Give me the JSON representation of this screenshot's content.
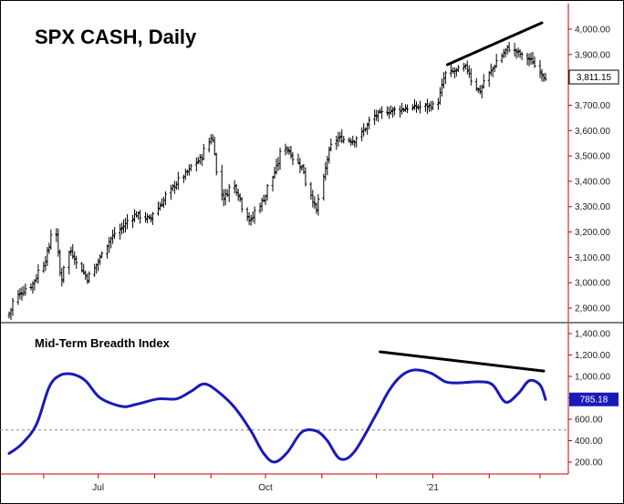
{
  "chart_data": [
    {
      "type": "bar",
      "style": "ohlc-bars",
      "title": "SPX CASH, Daily",
      "bar_color": "#000000",
      "y_ticks": [
        "4,000.00",
        "3,900.00",
        "3,800.00",
        "3,700.00",
        "3,600.00",
        "3,500.00",
        "3,400.00",
        "3,300.00",
        "3,200.00",
        "3,100.00",
        "3,000.00",
        "2,900.00"
      ],
      "ylim": [
        2870,
        4040
      ],
      "last_value_label": "3,811.15",
      "last_value_badge_color": "#ffffff",
      "x_range": [
        "2020-05-13",
        "2021-03-04"
      ],
      "anchors": [
        [
          "2020-05-13",
          2870
        ],
        [
          "2020-05-18",
          2950
        ],
        [
          "2020-05-26",
          2990
        ],
        [
          "2020-06-02",
          3080
        ],
        [
          "2020-06-08",
          3230
        ],
        [
          "2020-06-11",
          3000
        ],
        [
          "2020-06-16",
          3130
        ],
        [
          "2020-06-26",
          3010
        ],
        [
          "2020-07-08",
          3170
        ],
        [
          "2020-07-22",
          3270
        ],
        [
          "2020-07-30",
          3250
        ],
        [
          "2020-08-12",
          3380
        ],
        [
          "2020-08-28",
          3500
        ],
        [
          "2020-09-02",
          3580
        ],
        [
          "2020-09-08",
          3330
        ],
        [
          "2020-09-14",
          3390
        ],
        [
          "2020-09-23",
          3240
        ],
        [
          "2020-10-02",
          3350
        ],
        [
          "2020-10-12",
          3540
        ],
        [
          "2020-10-22",
          3450
        ],
        [
          "2020-10-30",
          3270
        ],
        [
          "2020-11-05",
          3510
        ],
        [
          "2020-11-10",
          3570
        ],
        [
          "2020-11-20",
          3560
        ],
        [
          "2020-12-01",
          3660
        ],
        [
          "2020-12-10",
          3680
        ],
        [
          "2020-12-21",
          3690
        ],
        [
          "2021-01-04",
          3700
        ],
        [
          "2021-01-08",
          3820
        ],
        [
          "2021-01-20",
          3850
        ],
        [
          "2021-01-27",
          3750
        ],
        [
          "2021-02-02",
          3830
        ],
        [
          "2021-02-12",
          3930
        ],
        [
          "2021-02-19",
          3900
        ],
        [
          "2021-02-26",
          3870
        ],
        [
          "2021-03-04",
          3811
        ]
      ],
      "annotations": [
        {
          "type": "trendline",
          "from": [
            "2021-01-09",
            3860
          ],
          "to": [
            "2021-03-02",
            4025
          ]
        }
      ]
    },
    {
      "type": "line",
      "title": "Mid-Term Breadth Index",
      "line_color": "#1a1ab8",
      "y_ticks": [
        "1,400.00",
        "1,200.00",
        "1,000.00",
        "800.00",
        "600.00",
        "400.00",
        "200.00"
      ],
      "ylim": [
        90,
        1460
      ],
      "reference_line": 500,
      "last_value_label": "785.18",
      "last_value_badge_color": "#1a1ab8",
      "x_range": [
        "2020-05-13",
        "2021-03-04"
      ],
      "points": [
        [
          "2020-05-13",
          280
        ],
        [
          "2020-05-20",
          370
        ],
        [
          "2020-05-28",
          550
        ],
        [
          "2020-06-04",
          900
        ],
        [
          "2020-06-10",
          1010
        ],
        [
          "2020-06-17",
          1020
        ],
        [
          "2020-06-24",
          960
        ],
        [
          "2020-07-02",
          800
        ],
        [
          "2020-07-14",
          720
        ],
        [
          "2020-07-22",
          740
        ],
        [
          "2020-08-03",
          790
        ],
        [
          "2020-08-13",
          790
        ],
        [
          "2020-08-21",
          860
        ],
        [
          "2020-08-28",
          930
        ],
        [
          "2020-09-04",
          870
        ],
        [
          "2020-09-14",
          710
        ],
        [
          "2020-09-23",
          490
        ],
        [
          "2020-09-30",
          280
        ],
        [
          "2020-10-06",
          200
        ],
        [
          "2020-10-13",
          290
        ],
        [
          "2020-10-21",
          480
        ],
        [
          "2020-10-29",
          490
        ],
        [
          "2020-11-04",
          400
        ],
        [
          "2020-11-11",
          230
        ],
        [
          "2020-11-19",
          300
        ],
        [
          "2020-12-01",
          650
        ],
        [
          "2020-12-08",
          870
        ],
        [
          "2020-12-15",
          1010
        ],
        [
          "2020-12-22",
          1060
        ],
        [
          "2020-12-31",
          1030
        ],
        [
          "2021-01-08",
          950
        ],
        [
          "2021-01-15",
          940
        ],
        [
          "2021-01-27",
          950
        ],
        [
          "2021-02-03",
          920
        ],
        [
          "2021-02-10",
          760
        ],
        [
          "2021-02-17",
          840
        ],
        [
          "2021-02-23",
          960
        ],
        [
          "2021-03-01",
          920
        ],
        [
          "2021-03-04",
          785
        ]
      ],
      "annotations": [
        {
          "type": "trendline",
          "from": [
            "2020-12-03",
            1230
          ],
          "to": [
            "2021-03-03",
            1050
          ]
        }
      ]
    }
  ],
  "x_axis": {
    "labels": [
      {
        "text": "Jul",
        "date": "2020-07-01"
      },
      {
        "text": "Oct",
        "date": "2020-10-01"
      },
      {
        "text": "'21",
        "date": "2021-01-01"
      }
    ],
    "month_ticks": [
      "2020-06-01",
      "2020-07-01",
      "2020-08-01",
      "2020-09-01",
      "2020-10-01",
      "2020-11-01",
      "2020-12-01",
      "2021-01-01",
      "2021-02-01",
      "2021-03-01"
    ]
  },
  "colors": {
    "axis": "#cc0000",
    "background": "#ffffff",
    "reference": "#888888"
  }
}
